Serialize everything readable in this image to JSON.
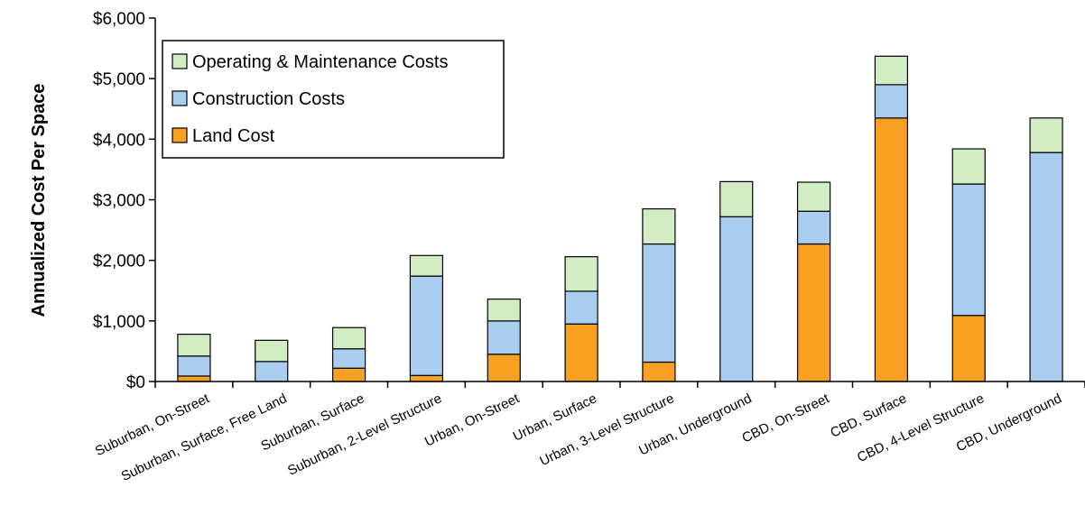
{
  "chart_data": {
    "type": "bar",
    "stacked": true,
    "title": "",
    "xlabel": "",
    "ylabel": "Annualized Cost Per Space",
    "ylim": [
      0,
      6000
    ],
    "yticks": [
      0,
      1000,
      2000,
      3000,
      4000,
      5000,
      6000
    ],
    "ytick_labels": [
      "$0",
      "$1,000",
      "$2,000",
      "$3,000",
      "$4,000",
      "$5,000",
      "$6,000"
    ],
    "grid": false,
    "legend_position": "top-left",
    "categories": [
      "Suburban, On-Street",
      "Suburban, Surface, Free Land",
      "Suburban, Surface",
      "Suburban, 2-Level Structure",
      "Urban, On-Street",
      "Urban, Surface",
      "Urban, 3-Level Structure",
      "Urban, Underground",
      "CBD, On-Street",
      "CBD, Surface",
      "CBD, 4-Level Structure",
      "CBD, Underground"
    ],
    "series": [
      {
        "name": "Land Cost",
        "color": "#f7a021",
        "values": [
          90,
          0,
          220,
          100,
          450,
          950,
          320,
          0,
          2270,
          4350,
          1090,
          0
        ]
      },
      {
        "name": "Construction Costs",
        "color": "#a8cdee",
        "values": [
          330,
          330,
          320,
          1640,
          550,
          540,
          1950,
          2720,
          540,
          550,
          2170,
          3780
        ]
      },
      {
        "name": "Operating & Maintenance Costs",
        "color": "#d2ecc4",
        "values": [
          360,
          350,
          350,
          340,
          360,
          570,
          580,
          580,
          480,
          470,
          580,
          570
        ]
      }
    ],
    "legend_order": [
      "Operating & Maintenance Costs",
      "Construction Costs",
      "Land Cost"
    ]
  }
}
